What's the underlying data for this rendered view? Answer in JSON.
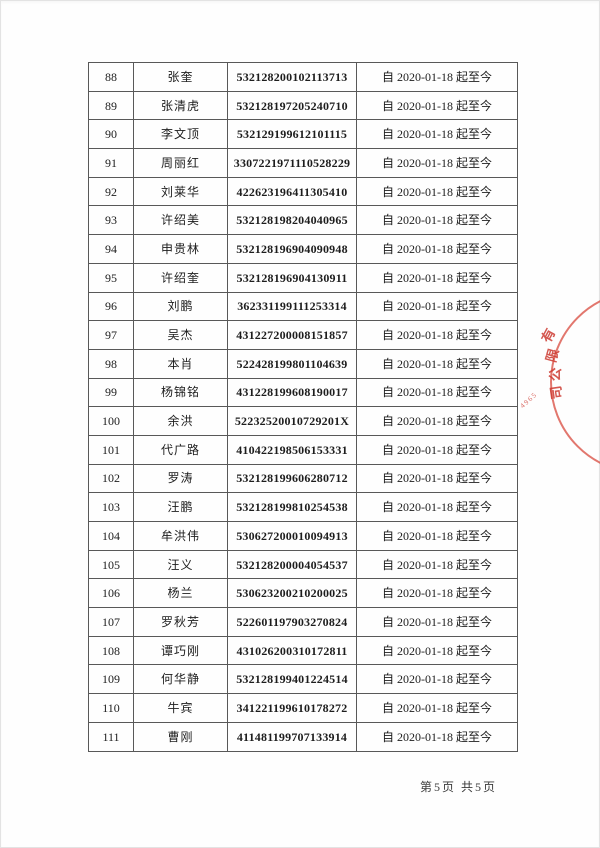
{
  "page": {
    "footer_page_info": "第5页 共5页"
  },
  "table": {
    "rows": [
      {
        "index": "88",
        "name": "张奎",
        "id_number": "532128200102113713",
        "period": "自 2020-01-18 起至今"
      },
      {
        "index": "89",
        "name": "张清虎",
        "id_number": "532128197205240710",
        "period": "自 2020-01-18 起至今"
      },
      {
        "index": "90",
        "name": "李文顶",
        "id_number": "532129199612101115",
        "period": "自 2020-01-18 起至今"
      },
      {
        "index": "91",
        "name": "周丽红",
        "id_number": "3307221971110528229",
        "period": "自 2020-01-18 起至今"
      },
      {
        "index": "92",
        "name": "刘莱华",
        "id_number": "422623196411305410",
        "period": "自 2020-01-18 起至今"
      },
      {
        "index": "93",
        "name": "许绍美",
        "id_number": "532128198204040965",
        "period": "自 2020-01-18 起至今"
      },
      {
        "index": "94",
        "name": "申贵林",
        "id_number": "532128196904090948",
        "period": "自 2020-01-18 起至今"
      },
      {
        "index": "95",
        "name": "许绍奎",
        "id_number": "532128196904130911",
        "period": "自 2020-01-18 起至今"
      },
      {
        "index": "96",
        "name": "刘鹏",
        "id_number": "362331199111253314",
        "period": "自 2020-01-18 起至今"
      },
      {
        "index": "97",
        "name": "吴杰",
        "id_number": "431227200008151857",
        "period": "自 2020-01-18 起至今"
      },
      {
        "index": "98",
        "name": "本肖",
        "id_number": "522428199801104639",
        "period": "自 2020-01-18 起至今"
      },
      {
        "index": "99",
        "name": "杨锦铭",
        "id_number": "431228199608190017",
        "period": "自 2020-01-18 起至今"
      },
      {
        "index": "100",
        "name": "余洪",
        "id_number": "52232520010729201X",
        "period": "自 2020-01-18 起至今"
      },
      {
        "index": "101",
        "name": "代广路",
        "id_number": "410422198506153331",
        "period": "自 2020-01-18 起至今"
      },
      {
        "index": "102",
        "name": "罗涛",
        "id_number": "532128199606280712",
        "period": "自 2020-01-18 起至今"
      },
      {
        "index": "103",
        "name": "汪鹏",
        "id_number": "532128199810254538",
        "period": "自 2020-01-18 起至今"
      },
      {
        "index": "104",
        "name": "牟洪伟",
        "id_number": "530627200010094913",
        "period": "自 2020-01-18 起至今"
      },
      {
        "index": "105",
        "name": "汪义",
        "id_number": "532128200004054537",
        "period": "自 2020-01-18 起至今"
      },
      {
        "index": "106",
        "name": "杨兰",
        "id_number": "530623200210200025",
        "period": "自 2020-01-18 起至今"
      },
      {
        "index": "107",
        "name": "罗秋芳",
        "id_number": "522601197903270824",
        "period": "自 2020-01-18 起至今"
      },
      {
        "index": "108",
        "name": "谭巧刚",
        "id_number": "431026200310172811",
        "period": "自 2020-01-18 起至今"
      },
      {
        "index": "109",
        "name": "何华静",
        "id_number": "532128199401224514",
        "period": "自 2020-01-18 起至今"
      },
      {
        "index": "110",
        "name": "牛宾",
        "id_number": "341221199610178272",
        "period": "自 2020-01-18 起至今"
      },
      {
        "index": "111",
        "name": "曹刚",
        "id_number": "411481199707133914",
        "period": "自 2020-01-18 起至今"
      }
    ]
  },
  "seal": {
    "arc_text_chars": [
      "有",
      "限",
      "公",
      "司"
    ],
    "serial_digits": "4965",
    "color": "#d24a3e"
  }
}
